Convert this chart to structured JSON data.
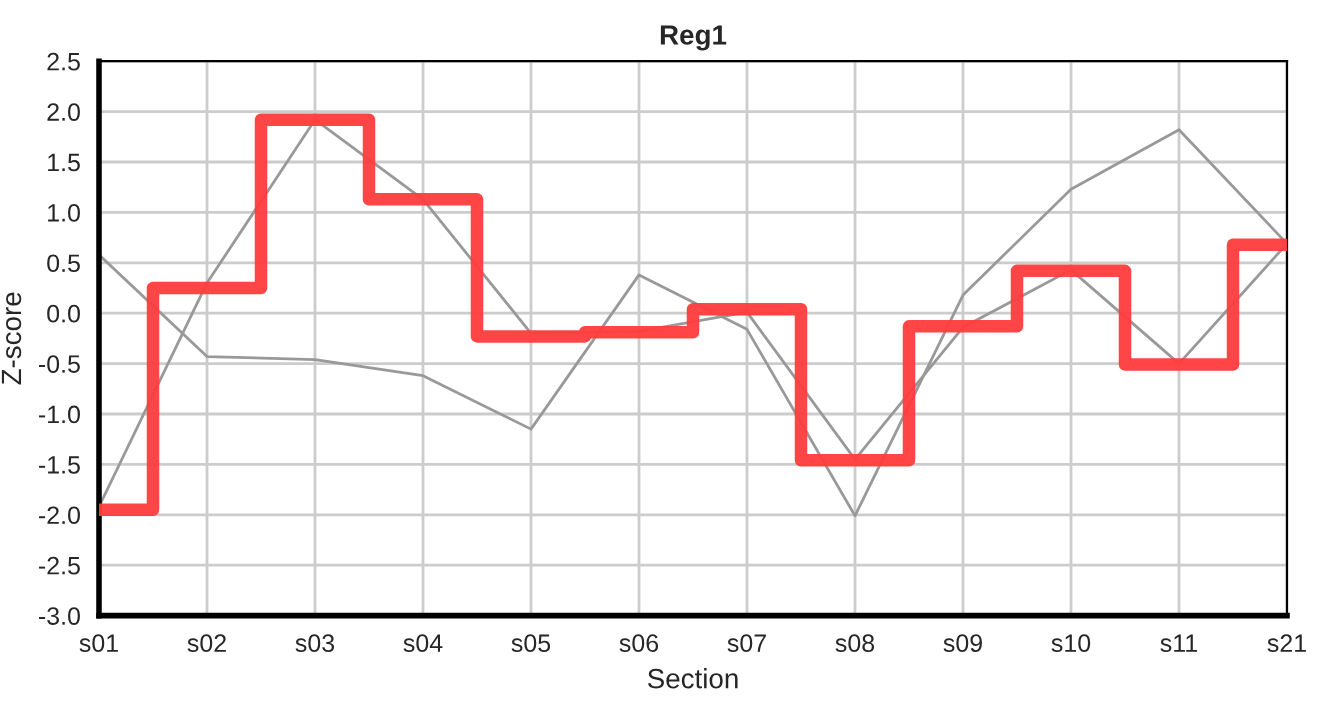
{
  "chart_data": {
    "type": "step",
    "title": "Reg1",
    "xlabel": "Section",
    "ylabel": "Z-score",
    "categories": [
      "s01",
      "s02",
      "s03",
      "s04",
      "s05",
      "s06",
      "s07",
      "s08",
      "s09",
      "s10",
      "s11",
      "s21"
    ],
    "series": [
      {
        "type": "line",
        "color": "#999999",
        "values": [
          0.58,
          -0.43,
          -0.46,
          -0.62,
          -1.15,
          0.38,
          -0.16,
          -2.01,
          0.18,
          1.23,
          1.82,
          0.69
        ]
      },
      {
        "type": "line",
        "color": "#999999",
        "values": [
          -1.92,
          0.3,
          1.92,
          1.13,
          -0.2,
          -0.18,
          0.01,
          -1.45,
          -0.14,
          0.43,
          -0.5,
          0.69
        ]
      },
      {
        "color": "#ff3b3b",
        "values": [
          -1.95,
          0.25,
          1.92,
          1.13,
          -0.23,
          -0.19,
          0.04,
          -1.46,
          -0.13,
          0.42,
          -0.51,
          0.68
        ]
      }
    ],
    "ylim": [
      -3.0,
      2.5
    ],
    "yticks": [
      {
        "value": -3.0,
        "label": "-3.0"
      },
      {
        "value": -2.5,
        "label": "-2.5"
      },
      {
        "value": -2.0,
        "label": "-2.0"
      },
      {
        "value": -1.5,
        "label": "-1.5"
      },
      {
        "value": -1.0,
        "label": "-1.0"
      },
      {
        "value": -0.5,
        "label": "-0.5"
      },
      {
        "value": 0.0,
        "label": "0.0"
      },
      {
        "value": 0.5,
        "label": "0.5"
      },
      {
        "value": 1.0,
        "label": "1.0"
      },
      {
        "value": 1.5,
        "label": "1.5"
      },
      {
        "value": 2.0,
        "label": "2.0"
      },
      {
        "value": 2.5,
        "label": "2.5"
      }
    ],
    "grid": true
  }
}
